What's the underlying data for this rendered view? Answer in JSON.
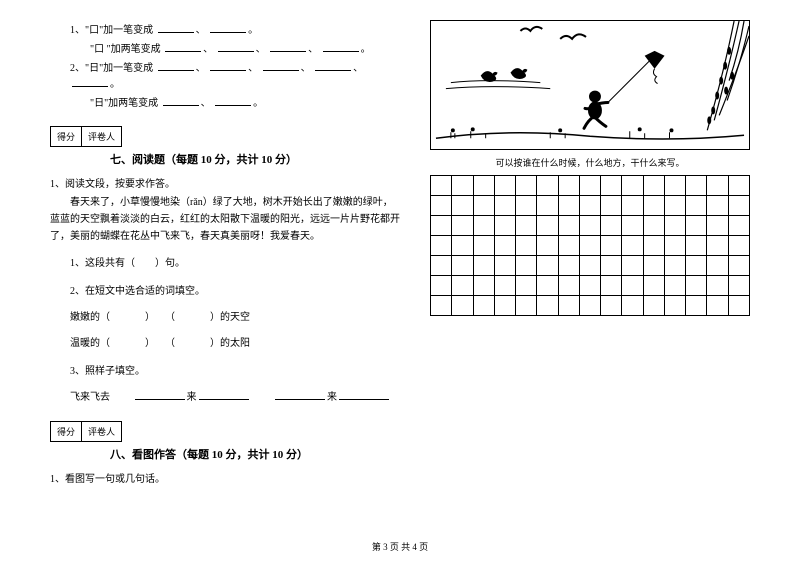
{
  "exercise1": {
    "line1_prefix": "1、\"口\"加一笔变成",
    "line1b_prefix": "\"口 \"加两笔变成",
    "line2_prefix": "2、\"日\"加一笔变成",
    "line2b_prefix": "\"日\"加两笔变成"
  },
  "score": {
    "label_score": "得分",
    "label_grader": "评卷人"
  },
  "section7": {
    "title": "七、阅读题（每题 10 分，共计 10 分）",
    "q1": "1、阅读文段，按要求作答。",
    "passage": "春天来了，小草慢慢地染（rǎn）绿了大地，树木开始长出了嫩嫩的绿叶，蓝蓝的天空飘着淡淡的白云，红红的太阳散下温暖的阳光，远远一片片野花都开了，美丽的蝴蝶在花丛中飞来飞，春天真美丽呀！我爱春天。",
    "sub1": "1、这段共有（　　）句。",
    "sub2": "2、在短文中选合适的词填空。",
    "sub2_line1_a": "嫩嫩的（",
    "sub2_line1_b": "）　　（",
    "sub2_line1_c": "）的天空",
    "sub2_line2_a": "温暖的（",
    "sub2_line2_b": "）　　（",
    "sub2_line2_c": "）的太阳",
    "sub3": "3、照样子填空。",
    "sub3_line": "飞来飞去"
  },
  "section8": {
    "title": "八、看图作答（每题 10 分，共计 10 分）",
    "q1": "1、看图写一句或几句话。",
    "caption": "可以按谁在什么时候，什么地方，干什么来写。"
  },
  "grid": {
    "rows": 7,
    "cols": 15
  },
  "footer": "第 3 页  共 4 页"
}
